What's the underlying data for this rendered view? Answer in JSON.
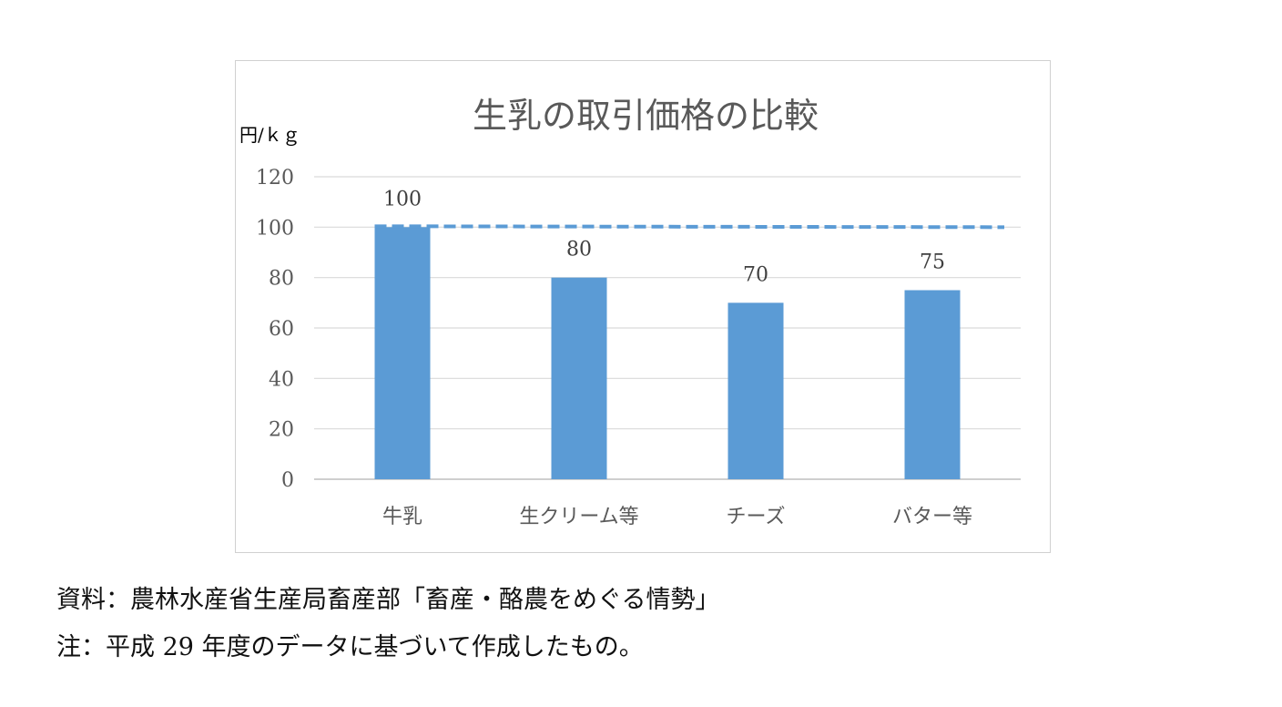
{
  "chart_data": {
    "type": "bar",
    "title": "生乳の取引価格の比較",
    "ylabel": "円/ｋｇ",
    "xlabel": "",
    "categories": [
      "牛乳",
      "生クリーム等",
      "チーズ",
      "バター等"
    ],
    "values": [
      100,
      80,
      70,
      75
    ],
    "data_labels": [
      "100",
      "80",
      "70",
      "75"
    ],
    "ylim": [
      0,
      120
    ],
    "yticks": [
      0,
      20,
      40,
      60,
      80,
      100,
      120
    ],
    "ytick_labels": [
      "0",
      "20",
      "40",
      "60",
      "80",
      "100",
      "120"
    ],
    "grid": true,
    "legend": "none",
    "reference_line": {
      "value": 100,
      "style": "dashed"
    },
    "colors": {
      "bar": "#5b9bd5",
      "reference_line": "#5b9bd5",
      "grid": "#d9d9d9",
      "axis": "#bfbfbf",
      "title": "#595959",
      "tick_label": "#595959",
      "data_label": "#404040"
    }
  },
  "notes": {
    "source": "資料：農林水産省生産局畜産部「畜産・酪農をめぐる情勢」",
    "remark": "注：平成 29 年度のデータに基づいて作成したもの。"
  }
}
